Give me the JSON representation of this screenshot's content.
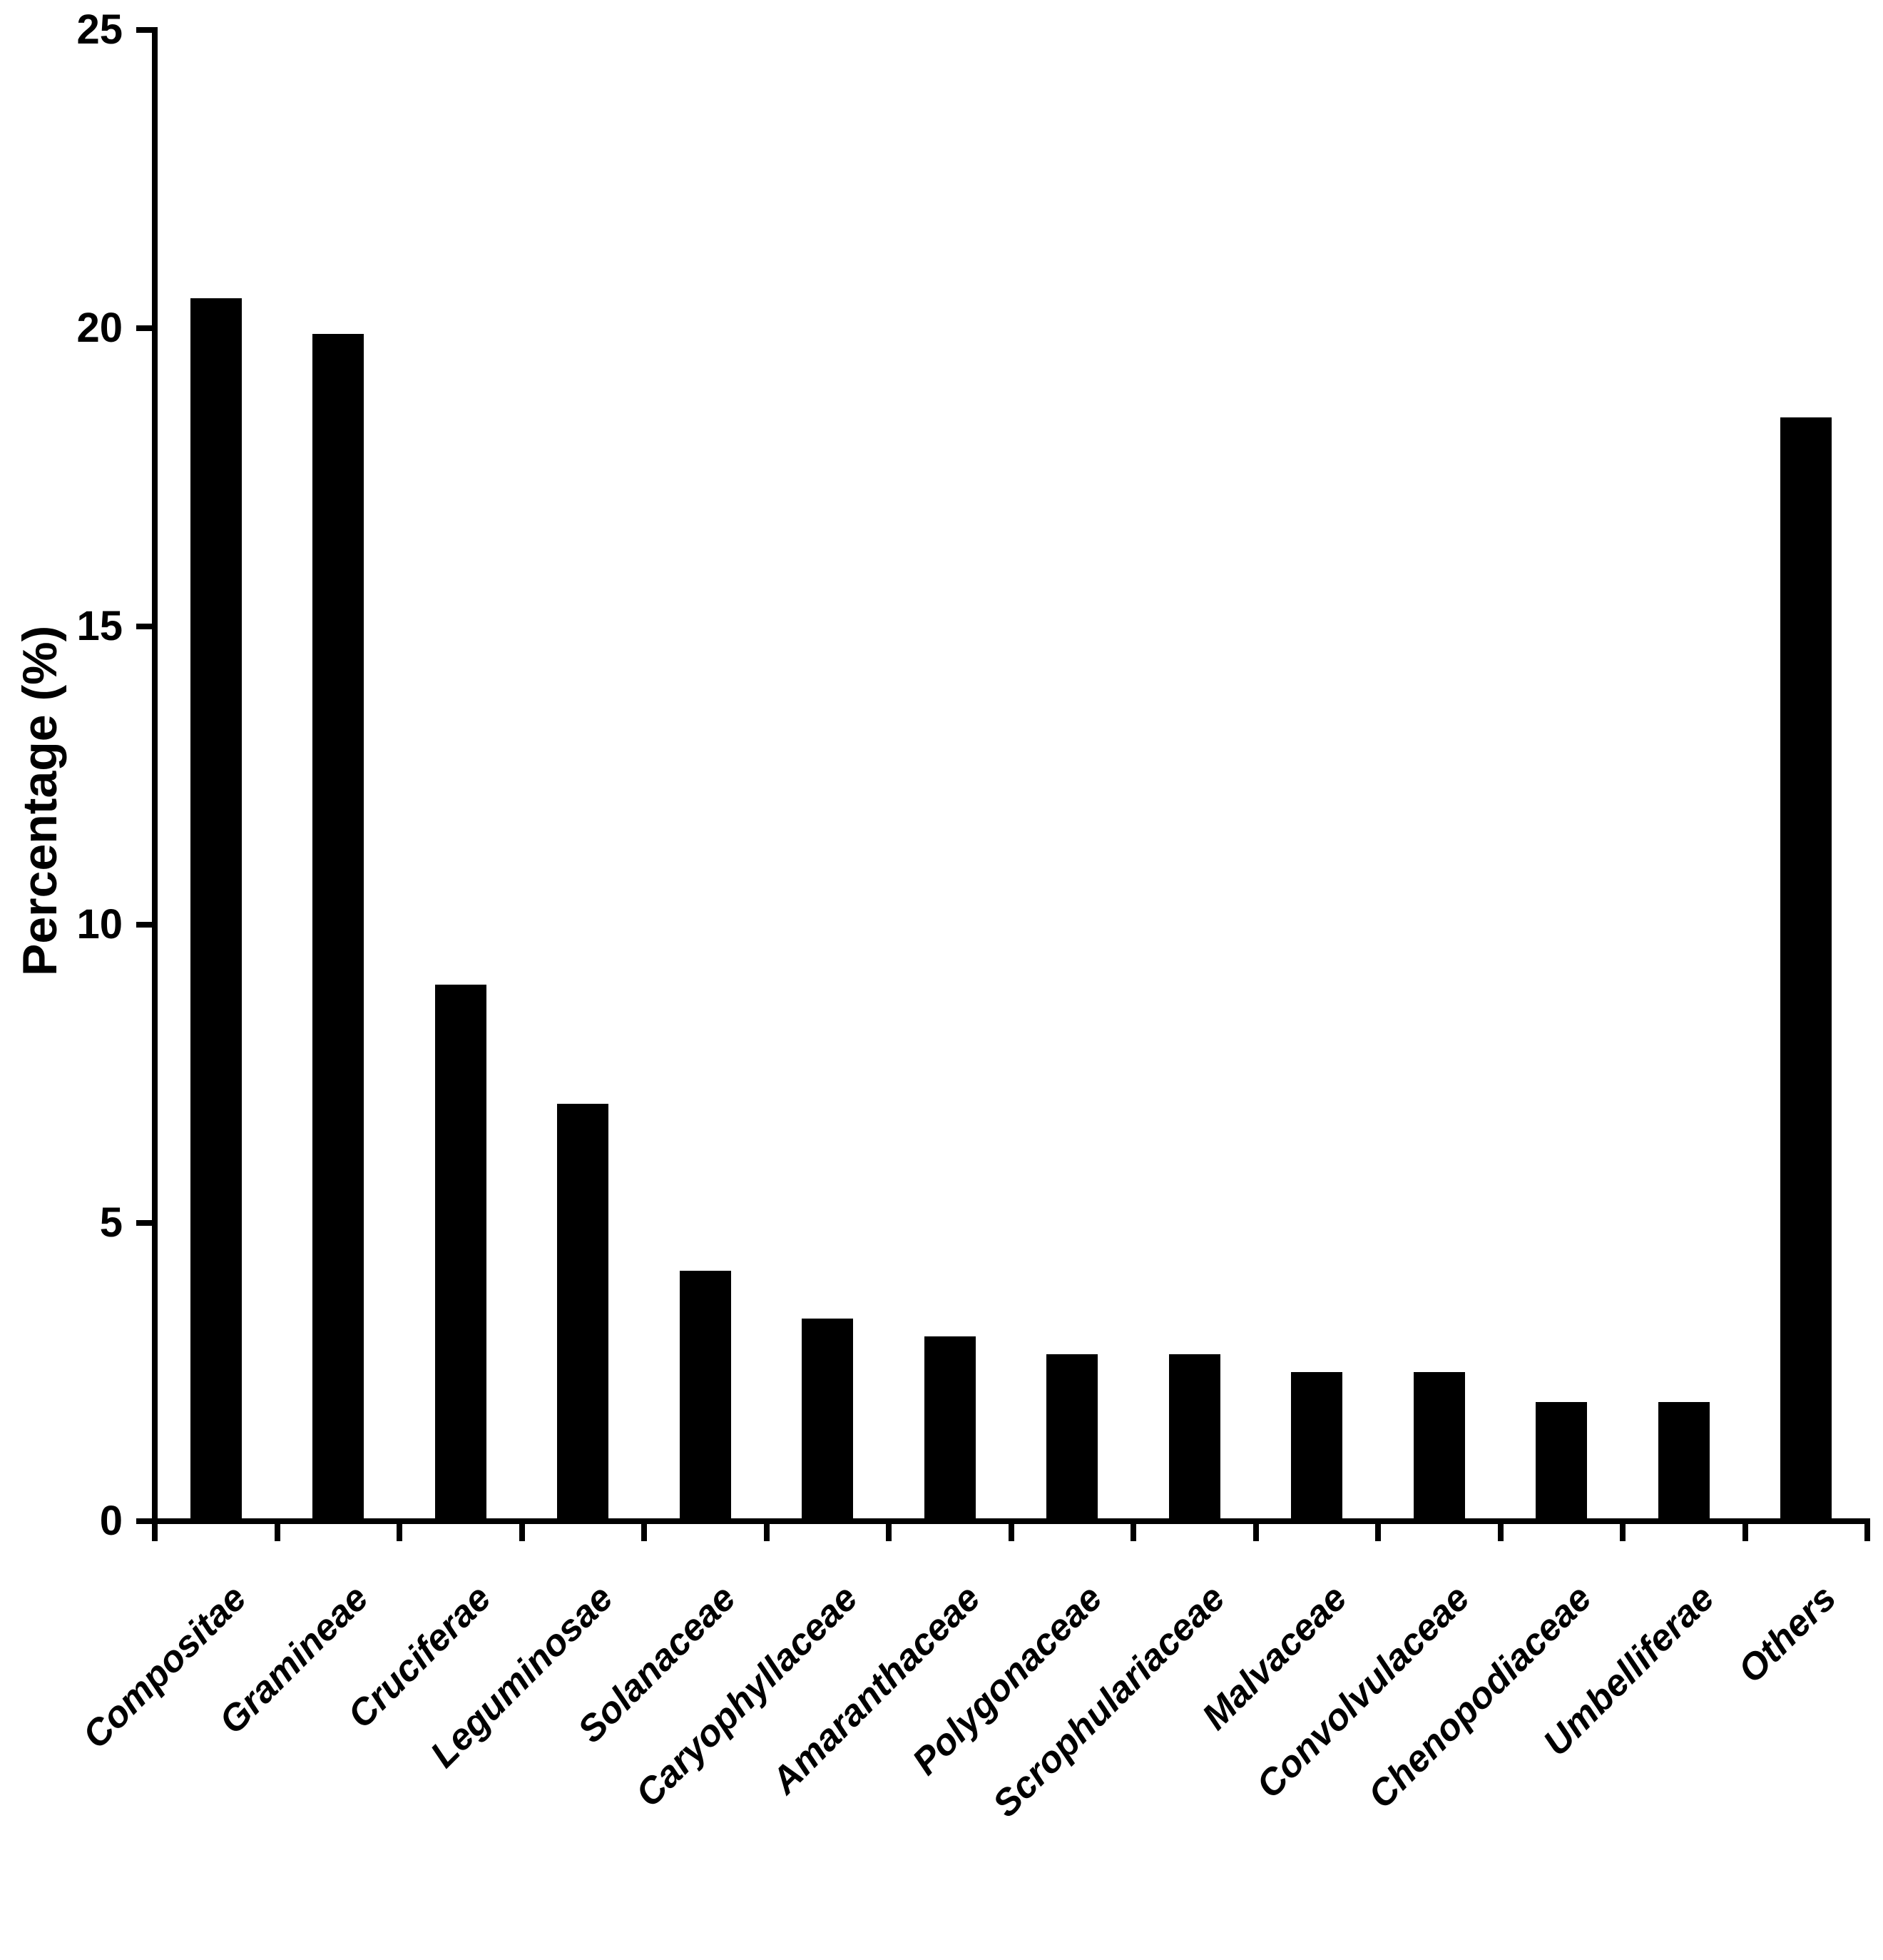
{
  "figure": {
    "background": "#ffffff",
    "bar_color": "#000000",
    "axis_color": "#000000"
  },
  "chart_data": {
    "type": "bar",
    "title": "",
    "xlabel": "",
    "ylabel": "Percentage (%)",
    "categories": [
      "Compositae",
      "Gramineae",
      "Cruciferae",
      "Leguminosae",
      "Solanaceae",
      "Caryophyllaceae",
      "Amaranthaceae",
      "Polygonaceae",
      "Scrophulariaceae",
      "Malvaceae",
      "Convolvulaceae",
      "Chenopodiaceae",
      "Umbelliferae",
      "Others"
    ],
    "values": [
      20.5,
      19.9,
      9.0,
      7.0,
      4.2,
      3.4,
      3.1,
      2.8,
      2.8,
      2.5,
      2.5,
      2.0,
      2.0,
      18.5
    ],
    "ylim": [
      0,
      25
    ],
    "yticks": [
      0,
      5,
      10,
      15,
      20,
      25
    ],
    "grid": "off",
    "legend": "none"
  }
}
